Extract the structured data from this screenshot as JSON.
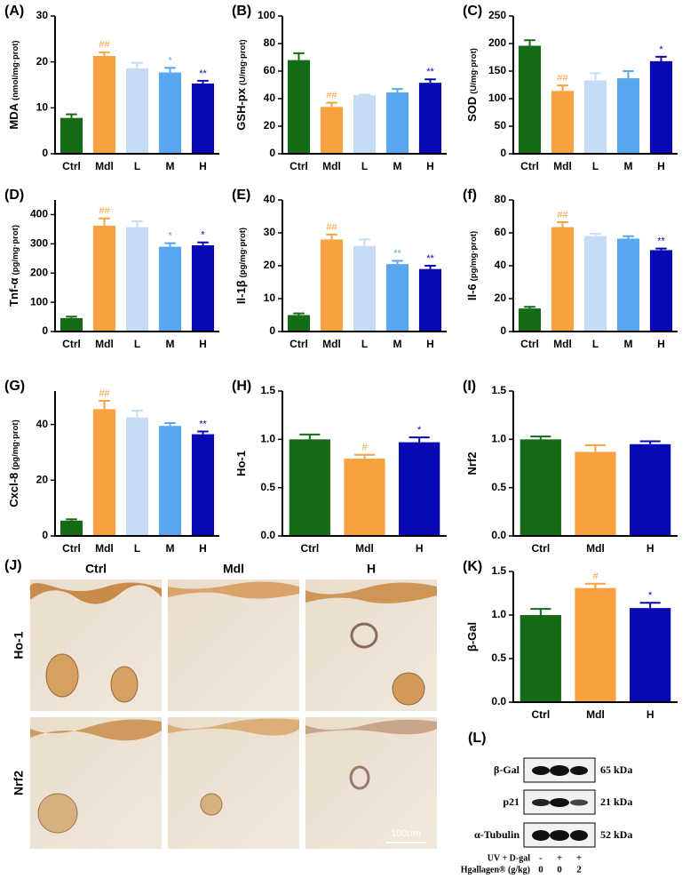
{
  "chart_data": [
    {
      "type": "bar",
      "panel": "(A)",
      "ylabel": "MDA",
      "ylabel_unit": "(nmol/mg·prot)",
      "categories": [
        "Ctrl",
        "Mdl",
        "L",
        "M",
        "H"
      ],
      "values": [
        7.8,
        21.3,
        18.6,
        17.7,
        15.3
      ],
      "errors": [
        0.8,
        0.8,
        1.2,
        1.0,
        0.6
      ],
      "colors": [
        "#166b16",
        "#f9a040",
        "#c6dcf5",
        "#58a5f0",
        "#0808b4"
      ],
      "ylim": [
        0,
        30
      ],
      "yticks": [
        0,
        10,
        20,
        30
      ],
      "annotations": [
        null,
        "##",
        null,
        "*",
        "**"
      ]
    },
    {
      "type": "bar",
      "panel": "(B)",
      "ylabel": "GSH-px",
      "ylabel_unit": "(U/mg·prot)",
      "categories": [
        "Ctrl",
        "Mdl",
        "L",
        "M",
        "H"
      ],
      "values": [
        68,
        34,
        42.5,
        44.5,
        51.5
      ],
      "errors": [
        5,
        3,
        0.5,
        2.5,
        2.5
      ],
      "colors": [
        "#166b16",
        "#f9a040",
        "#c6dcf5",
        "#58a5f0",
        "#0808b4"
      ],
      "ylim": [
        0,
        100
      ],
      "yticks": [
        0,
        20,
        40,
        60,
        80,
        100
      ],
      "annotations": [
        null,
        "##",
        null,
        null,
        "**"
      ]
    },
    {
      "type": "bar",
      "panel": "(C)",
      "ylabel": "SOD",
      "ylabel_unit": "(U/mg·prot)",
      "categories": [
        "Ctrl",
        "Mdl",
        "L",
        "M",
        "H"
      ],
      "values": [
        196,
        114,
        133,
        137,
        168
      ],
      "errors": [
        10,
        10,
        13,
        13,
        8
      ],
      "colors": [
        "#166b16",
        "#f9a040",
        "#c6dcf5",
        "#58a5f0",
        "#0808b4"
      ],
      "ylim": [
        0,
        250
      ],
      "yticks": [
        0,
        50,
        100,
        150,
        200,
        250
      ],
      "annotations": [
        null,
        "##",
        null,
        null,
        "*"
      ]
    },
    {
      "type": "bar",
      "panel": "(D)",
      "ylabel": "Tnf-α",
      "ylabel_unit": "(pg/mg·prot)",
      "categories": [
        "Ctrl",
        "Mdl",
        "L",
        "M",
        "H"
      ],
      "values": [
        46,
        362,
        357,
        290,
        295
      ],
      "errors": [
        5,
        25,
        20,
        12,
        10
      ],
      "colors": [
        "#166b16",
        "#f9a040",
        "#c6dcf5",
        "#58a5f0",
        "#0808b4"
      ],
      "ylim": [
        0,
        450
      ],
      "yticks": [
        0,
        100,
        200,
        300,
        400
      ],
      "annotations": [
        null,
        "##",
        null,
        "*",
        "*"
      ]
    },
    {
      "type": "bar",
      "panel": "(E)",
      "ylabel": "Il-1β",
      "ylabel_unit": "(pg/mg·prot)",
      "categories": [
        "Ctrl",
        "Mdl",
        "L",
        "M",
        "H"
      ],
      "values": [
        5,
        28,
        26,
        20.5,
        19
      ],
      "errors": [
        0.5,
        1.5,
        2,
        1,
        1
      ],
      "colors": [
        "#166b16",
        "#f9a040",
        "#c6dcf5",
        "#58a5f0",
        "#0808b4"
      ],
      "ylim": [
        0,
        40
      ],
      "yticks": [
        0,
        10,
        20,
        30,
        40
      ],
      "annotations": [
        null,
        "##",
        null,
        "**",
        "**"
      ]
    },
    {
      "type": "bar",
      "panel": "(f)",
      "ylabel": "Il-6",
      "ylabel_unit": "(pg/mg·prot)",
      "categories": [
        "Ctrl",
        "Mdl",
        "L",
        "M",
        "H"
      ],
      "values": [
        14,
        63.5,
        58,
        56.5,
        49.5
      ],
      "errors": [
        1,
        3,
        1.5,
        1.5,
        1
      ],
      "colors": [
        "#166b16",
        "#f9a040",
        "#c6dcf5",
        "#58a5f0",
        "#0808b4"
      ],
      "ylim": [
        0,
        80
      ],
      "yticks": [
        0,
        20,
        40,
        60,
        80
      ],
      "annotations": [
        null,
        "##",
        null,
        null,
        "**"
      ]
    },
    {
      "type": "bar",
      "panel": "(G)",
      "ylabel": "Cxcl-8",
      "ylabel_unit": "(pg/mg·prot)",
      "categories": [
        "Ctrl",
        "Mdl",
        "L",
        "M",
        "H"
      ],
      "values": [
        5.5,
        45.5,
        42.5,
        39.5,
        36.5
      ],
      "errors": [
        0.5,
        3,
        2.5,
        1,
        1
      ],
      "colors": [
        "#166b16",
        "#f9a040",
        "#c6dcf5",
        "#58a5f0",
        "#0808b4"
      ],
      "ylim": [
        0,
        52
      ],
      "yticks": [
        0,
        20,
        40
      ],
      "annotations": [
        null,
        "##",
        null,
        null,
        "**"
      ]
    },
    {
      "type": "bar",
      "panel": "(H)",
      "ylabel": "Ho-1",
      "categories": [
        "Ctrl",
        "Mdl",
        "H"
      ],
      "values": [
        1.0,
        0.8,
        0.97
      ],
      "errors": [
        0.05,
        0.04,
        0.05
      ],
      "colors": [
        "#166b16",
        "#f9a040",
        "#0808b4"
      ],
      "ylim": [
        0,
        1.5
      ],
      "yticks": [
        {
          "value": 0,
          "label": "0.0"
        },
        0.5,
        {
          "value": 1,
          "label": "1.0"
        },
        1.5
      ],
      "annotations": [
        null,
        "#",
        "*"
      ]
    },
    {
      "type": "bar",
      "panel": "(I)",
      "ylabel": "Nrf2",
      "categories": [
        "Ctrl",
        "Mdl",
        "H"
      ],
      "values": [
        1.0,
        0.87,
        0.95
      ],
      "errors": [
        0.03,
        0.07,
        0.03
      ],
      "colors": [
        "#166b16",
        "#f9a040",
        "#0808b4"
      ],
      "ylim": [
        0,
        1.5
      ],
      "yticks": [
        {
          "value": 0,
          "label": "0.0"
        },
        0.5,
        {
          "value": 1,
          "label": "1.0"
        },
        1.5
      ],
      "annotations": [
        null,
        null,
        null
      ]
    },
    {
      "type": "bar",
      "panel": "(K)",
      "ylabel": "β-Gal",
      "categories": [
        "Ctrl",
        "Mdl",
        "H"
      ],
      "values": [
        1.0,
        1.31,
        1.08
      ],
      "errors": [
        0.07,
        0.05,
        0.06
      ],
      "colors": [
        "#166b16",
        "#f9a040",
        "#0808b4"
      ],
      "ylim": [
        0,
        1.5
      ],
      "yticks": [
        {
          "value": 0,
          "label": "0.0"
        },
        0.5,
        {
          "value": 1,
          "label": "1.0"
        },
        1.5
      ],
      "annotations": [
        null,
        "#",
        "*"
      ]
    }
  ],
  "image_panel": {
    "panel": "(J)",
    "columns": [
      "Ctrl",
      "Mdl",
      "H"
    ],
    "rows": [
      "Ho-1",
      "Nrf2"
    ],
    "scale_bar": "100μm"
  },
  "blot_panel": {
    "panel": "(L)",
    "proteins": [
      "β-Gal",
      "p21",
      "α-Tubulin"
    ],
    "sizes": [
      "65 kDa",
      "21 kDa",
      "52 kDa"
    ],
    "treatments": [
      {
        "name": "UV + D-gal",
        "lanes": [
          "-",
          "+",
          "+"
        ]
      },
      {
        "name": "Hgallagen® (g/kg)",
        "lanes": [
          "0",
          "0",
          "2"
        ]
      }
    ]
  }
}
